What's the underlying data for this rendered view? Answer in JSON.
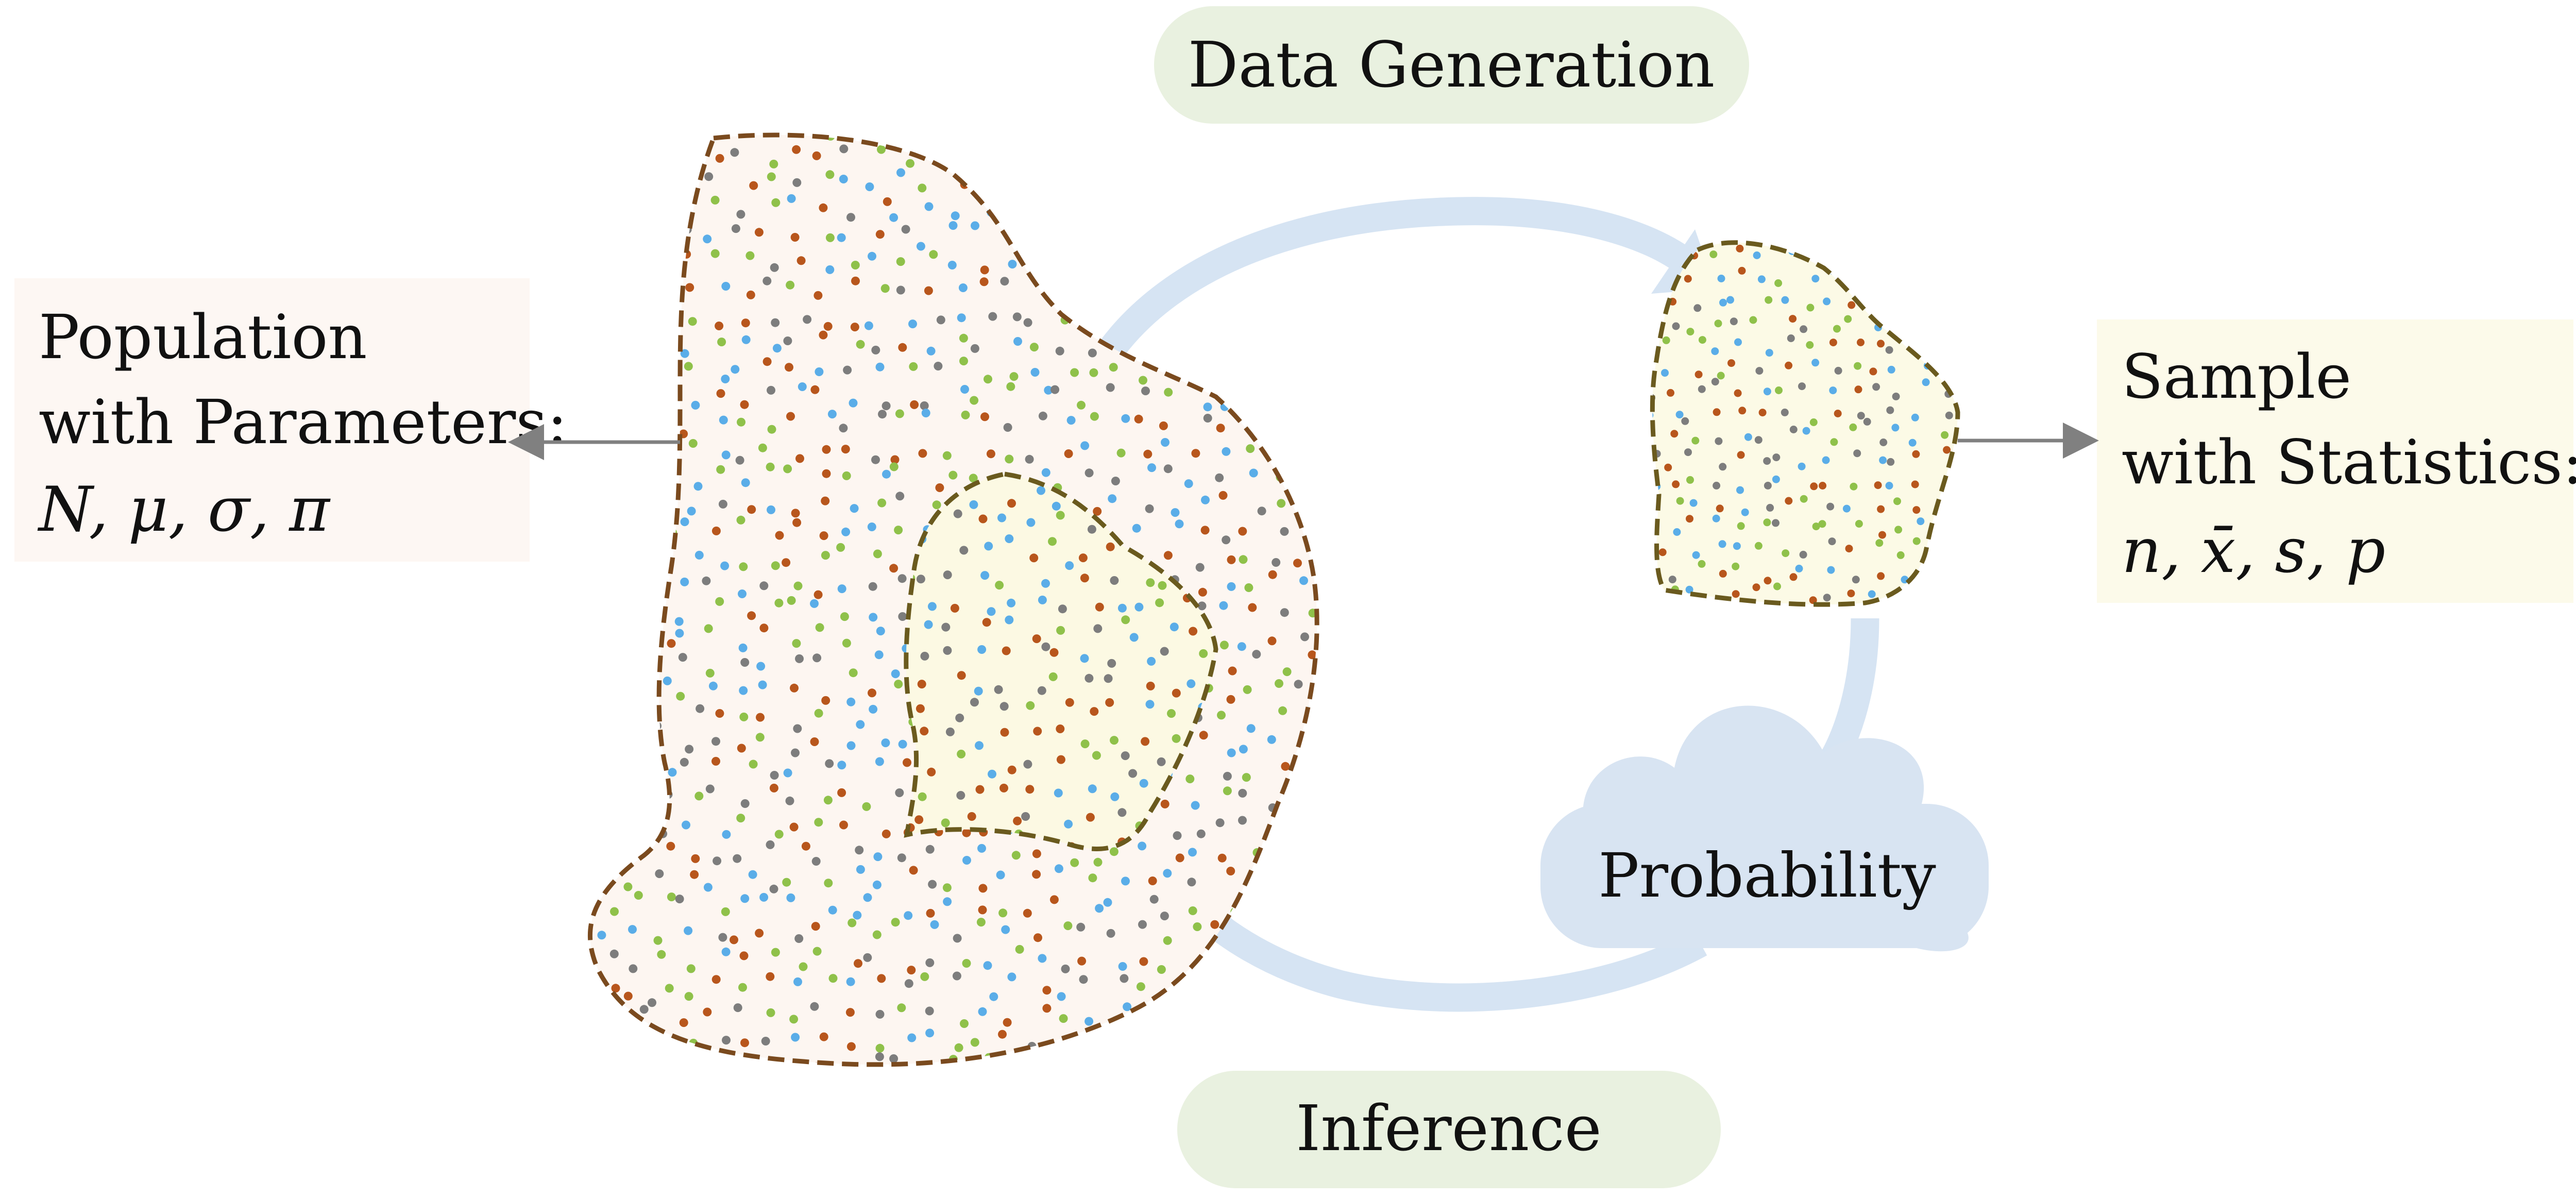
{
  "labels": {
    "data_generation": "Data Generation",
    "inference": "Inference",
    "probability": "Probability"
  },
  "population": {
    "line1": "Population",
    "line2": "with Parameters:",
    "params": "N, μ, σ, π"
  },
  "sample": {
    "line1": "Sample",
    "line2": "with Statistics:",
    "stats": "n, x̄, s, p"
  },
  "colors": {
    "dot_palette": [
      "#5aade8",
      "#b8561c",
      "#7d7d7d",
      "#8fc14a"
    ],
    "population_fill": "#fdf6f1",
    "population_border": "#7a4a1e",
    "sample_fill": "#fcfae6",
    "sample_border": "#6a5a1e",
    "cycle_arrow": "#d6e4f3",
    "cloud": "#d8e4f2",
    "pill": "#e9f1e0",
    "population_box": "#fdf7f3",
    "sample_box": "#fcfaea",
    "connector": "#808080"
  }
}
